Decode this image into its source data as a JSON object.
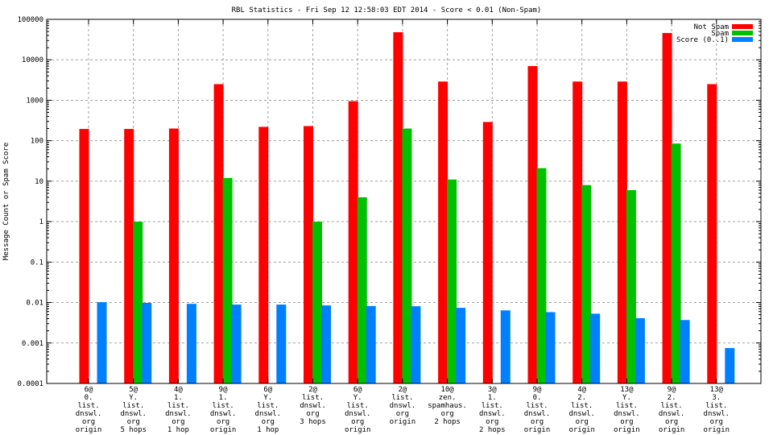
{
  "chart_data": {
    "type": "bar",
    "title": "RBL Statistics - Fri Sep 12 12:58:03 EDT 2014 - Score < 0.01 (Non-Spam)",
    "xlabel": "",
    "ylabel": "Message Count or Spam Score",
    "yscale": "log",
    "ylim": [
      0.0001,
      100000
    ],
    "yticks": [
      "0.0001",
      "0.001",
      "0.01",
      "0.1",
      "1",
      "10",
      "100",
      "1000",
      "10000",
      "100000"
    ],
    "grid": true,
    "legend_position": "top-right",
    "categories": [
      [
        "6@",
        "0.",
        "list.",
        "dnswl.",
        "org",
        "origin"
      ],
      [
        "5@",
        "Y.",
        "list.",
        "dnswl.",
        "org",
        "5 hops"
      ],
      [
        "4@",
        "1.",
        "list.",
        "dnswl.",
        "org",
        "1 hop"
      ],
      [
        "9@",
        "1.",
        "list.",
        "dnswl.",
        "org",
        "origin"
      ],
      [
        "6@",
        "Y.",
        "list.",
        "dnswl.",
        "org",
        "1 hop"
      ],
      [
        "2@",
        "list.",
        "dnswl.",
        "org",
        "3 hops"
      ],
      [
        "6@",
        "Y.",
        "list.",
        "dnswl.",
        "org",
        "origin"
      ],
      [
        "2@",
        "list.",
        "dnswl.",
        "org",
        "origin"
      ],
      [
        "10@",
        "zen.",
        "spamhaus.",
        "org",
        "2 hops"
      ],
      [
        "3@",
        "1.",
        "list.",
        "dnswl.",
        "org",
        "2 hops"
      ],
      [
        "9@",
        "0.",
        "list.",
        "dnswl.",
        "org",
        "origin"
      ],
      [
        "4@",
        "2.",
        "list.",
        "dnswl.",
        "org",
        "origin"
      ],
      [
        "13@",
        "Y.",
        "list.",
        "dnswl.",
        "org",
        "origin"
      ],
      [
        "9@",
        "2.",
        "list.",
        "dnswl.",
        "org",
        "origin"
      ],
      [
        "13@",
        "3.",
        "list.",
        "dnswl.",
        "org",
        "origin"
      ]
    ],
    "series": [
      {
        "name": "Not Spam",
        "color": "#ff0000",
        "values": [
          195,
          195,
          200,
          2500,
          220,
          230,
          950,
          48000,
          2900,
          290,
          7000,
          2900,
          2900,
          46000,
          2500
        ]
      },
      {
        "name": "Spam",
        "color": "#00c000",
        "values": [
          null,
          1,
          null,
          12,
          null,
          1,
          4,
          200,
          11,
          null,
          21,
          8,
          6,
          85,
          null
        ]
      },
      {
        "name": "Score (0..1)",
        "color": "#0080ff",
        "values": [
          0.0102,
          0.0098,
          0.0093,
          0.0089,
          0.0089,
          0.0085,
          0.0082,
          0.0081,
          0.0074,
          0.0064,
          0.0058,
          0.0053,
          0.0041,
          0.0037,
          0.00075
        ]
      }
    ]
  }
}
